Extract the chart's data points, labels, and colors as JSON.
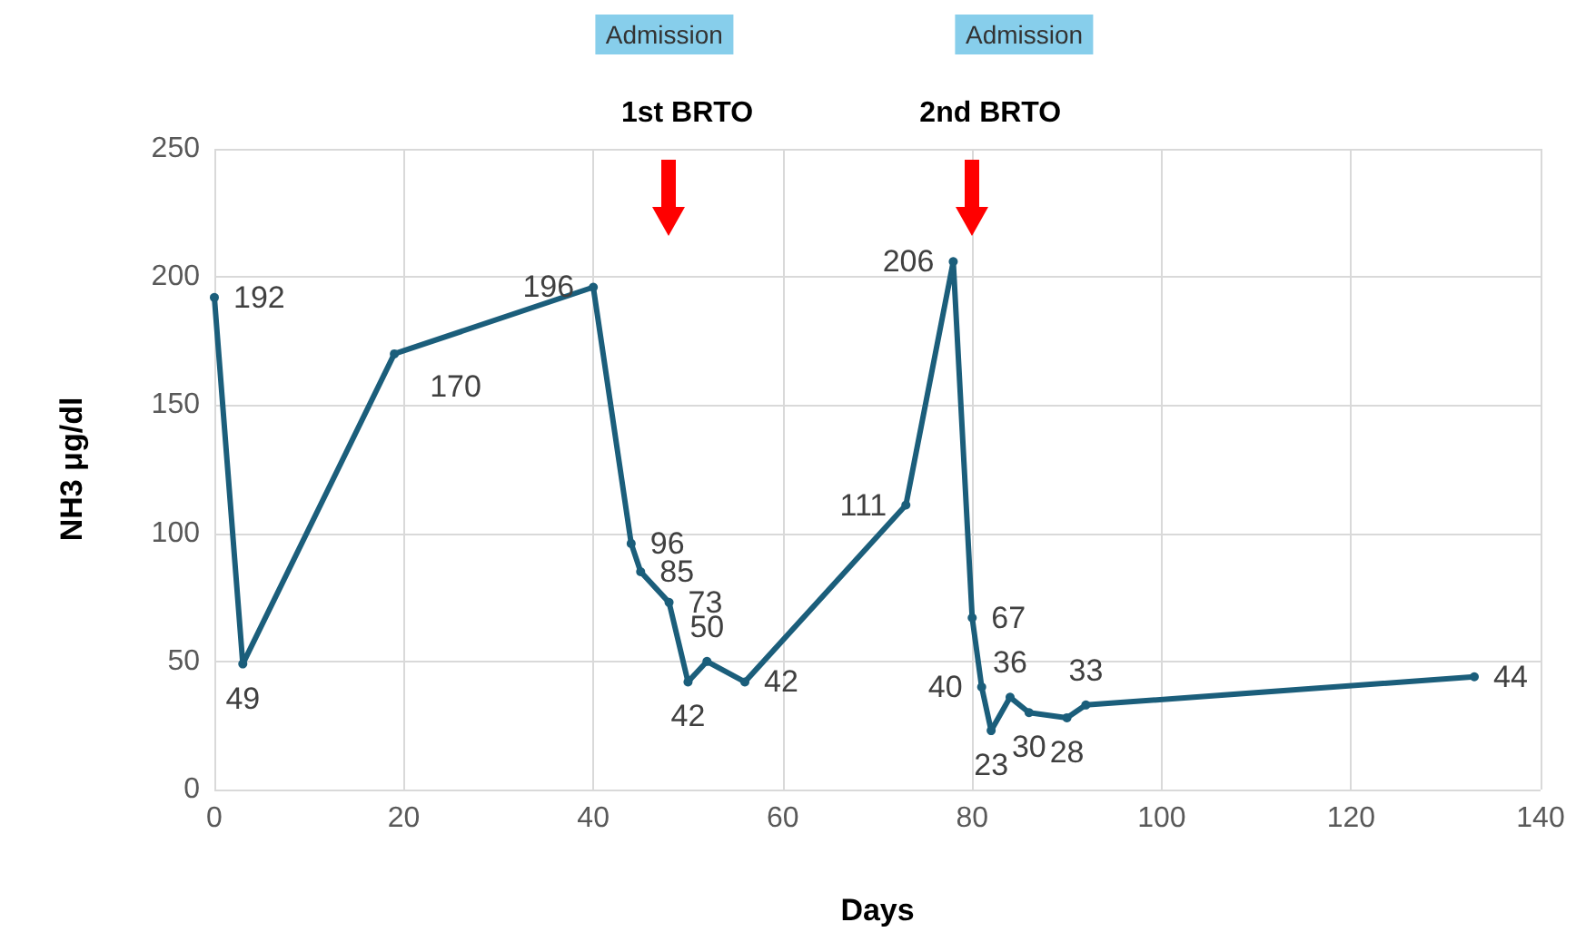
{
  "chart_data": {
    "type": "line",
    "xlabel": "Days",
    "ylabel": "NH3 μg/dl",
    "x": [
      0,
      3,
      19,
      40,
      44,
      45,
      48,
      50,
      52,
      56,
      73,
      78,
      80,
      81,
      82,
      84,
      86,
      90,
      92,
      133
    ],
    "series": [
      {
        "color": "#1b5e7b",
        "values": [
          192,
          49,
          170,
          196,
          96,
          85,
          73,
          42,
          50,
          42,
          111,
          206,
          67,
          40,
          23,
          36,
          30,
          28,
          33,
          44
        ]
      }
    ],
    "xlim": [
      0,
      140
    ],
    "xticks": [
      0,
      20,
      40,
      60,
      80,
      100,
      120,
      140
    ],
    "ylim": [
      0,
      250
    ],
    "yticks": [
      0,
      50,
      100,
      150,
      200,
      250
    ],
    "grid": true,
    "marker": "circle",
    "data_labels": true,
    "annotations": [
      "Admission",
      "Admission",
      "1st BRTO",
      "2nd BRTO"
    ]
  }
}
